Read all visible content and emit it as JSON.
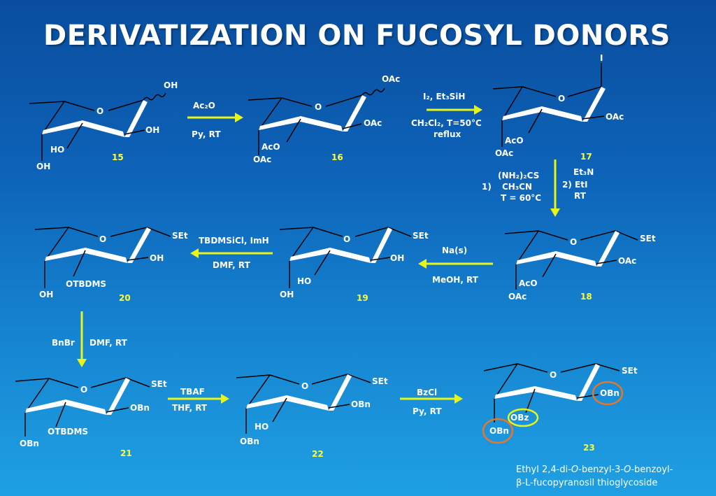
{
  "title": "DERIVATIZATION ON FUCOSYL DONORS",
  "compounds": [
    {
      "number": "15",
      "labels": {
        "anomeric": "OH",
        "c2": "OH",
        "c3": "HO",
        "c4": "OH",
        "ring_o": "O"
      }
    },
    {
      "number": "16",
      "labels": {
        "anomeric": "OAc",
        "c2": "OAc",
        "c3": "AcO",
        "c4": "OAc",
        "ring_o": "O"
      }
    },
    {
      "number": "17",
      "labels": {
        "anomeric": "I",
        "c2": "OAc",
        "c3": "AcO",
        "c4": "OAc",
        "ring_o": "O"
      }
    },
    {
      "number": "18",
      "labels": {
        "anomeric": "SEt",
        "c2": "OAc",
        "c3": "AcO",
        "c4": "OAc",
        "ring_o": "O"
      }
    },
    {
      "number": "19",
      "labels": {
        "anomeric": "SEt",
        "c2": "OH",
        "c3": "HO",
        "c4": "OH",
        "ring_o": "O"
      }
    },
    {
      "number": "20",
      "labels": {
        "anomeric": "SEt",
        "c2": "OH",
        "c3": "OTBDMS",
        "c4": "OH",
        "ring_o": "O"
      }
    },
    {
      "number": "21",
      "labels": {
        "anomeric": "SEt",
        "c2": "OBn",
        "c3": "OTBDMS",
        "c4": "OBn",
        "ring_o": "O"
      }
    },
    {
      "number": "22",
      "labels": {
        "anomeric": "SEt",
        "c2": "OBn",
        "c3": "HO",
        "c4": "OBn",
        "ring_o": "O"
      }
    },
    {
      "number": "23",
      "labels": {
        "anomeric": "SEt",
        "c2": "OBn",
        "c3": "OBz",
        "c4": "OBn",
        "ring_o": "O"
      }
    }
  ],
  "steps": [
    {
      "above": "Ac₂O",
      "below": "Py, RT"
    },
    {
      "above": "I₂, Et₃SiH",
      "below1": "CH₂Cl₂, T=50°C",
      "below2": "reflux"
    },
    {
      "left_num": "1)",
      "left1": "(NH₂)₂CS",
      "left2": "CH₃CN",
      "left3": "T = 60°C",
      "right1": "Et₃N",
      "right2": "2) EtI",
      "right3": "RT"
    },
    {
      "above": "Na(s)",
      "below": "MeOH, RT"
    },
    {
      "above": "TBDMSiCl, ImH",
      "below": "DMF, RT"
    },
    {
      "left": "BnBr",
      "right": "DMF, RT"
    },
    {
      "above": "TBAF",
      "below": "THF, RT"
    },
    {
      "above": "BzCl",
      "below": "Py, RT"
    }
  ],
  "caption": {
    "line1_a": "Ethyl 2,4-di-",
    "line1_b": "O",
    "line1_c": "-benzyl-3-",
    "line1_d": "O",
    "line1_e": "-benzoyl-",
    "line2": "β-L-fucopyranosil thioglycoside"
  },
  "colors": {
    "arrow": "#e8f51a",
    "compound_number": "#ffff33",
    "highlight_obn": "#e8762a",
    "highlight_obz": "#e8f51a"
  }
}
